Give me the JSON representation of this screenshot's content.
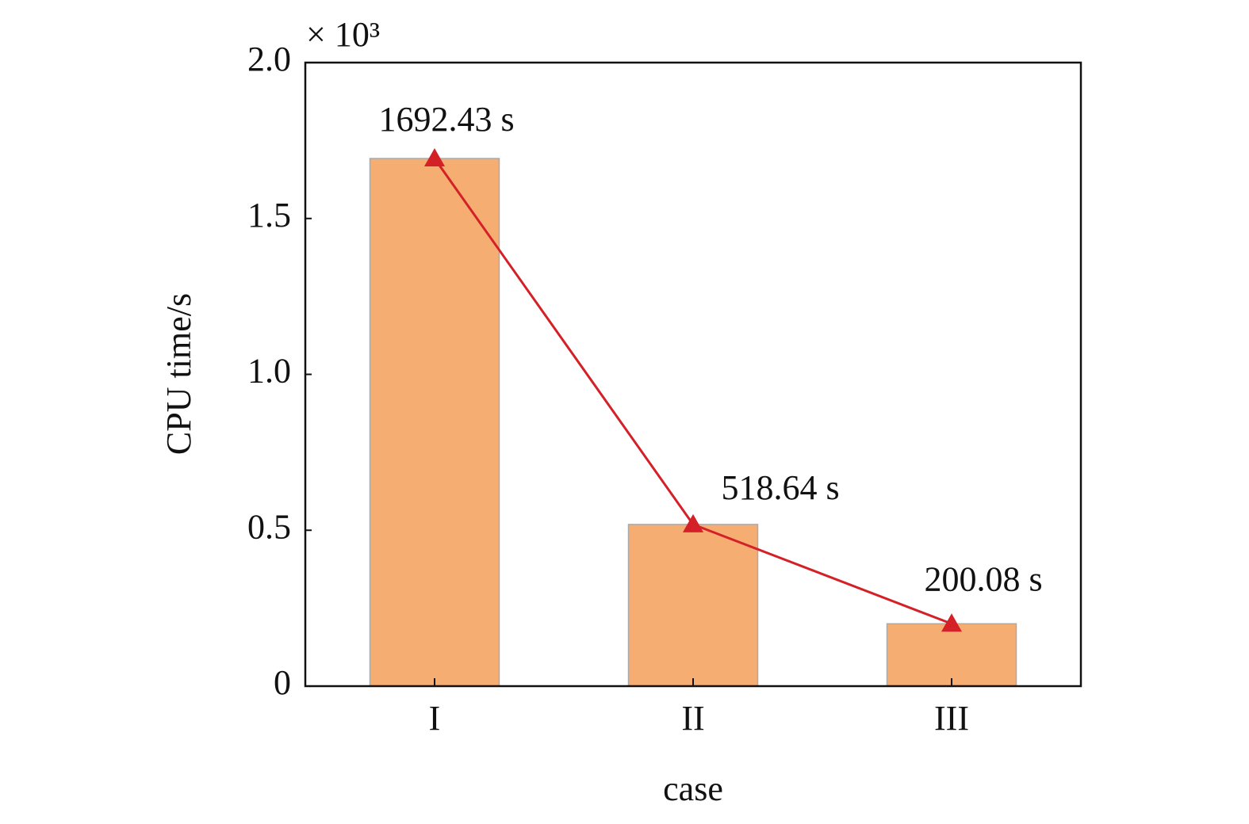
{
  "chart_data": {
    "type": "bar",
    "x_label": "case",
    "y_label": "CPU time/s",
    "y_multiplier": "× 10³",
    "categories": [
      "I",
      "II",
      "III"
    ],
    "values": [
      1.69243,
      0.51864,
      0.20008
    ],
    "value_labels": [
      "1692.43 s",
      "518.64 s",
      "200.08 s"
    ],
    "color": "#f5ad72",
    "line": true,
    "line_color": "#d42027",
    "ylim": [
      0,
      2
    ],
    "yticks": [
      0,
      0.5,
      {
        "value": 1,
        "label": "1.0"
      },
      1.5,
      {
        "value": 2,
        "label": "2.0"
      }
    ],
    "grid": false
  }
}
